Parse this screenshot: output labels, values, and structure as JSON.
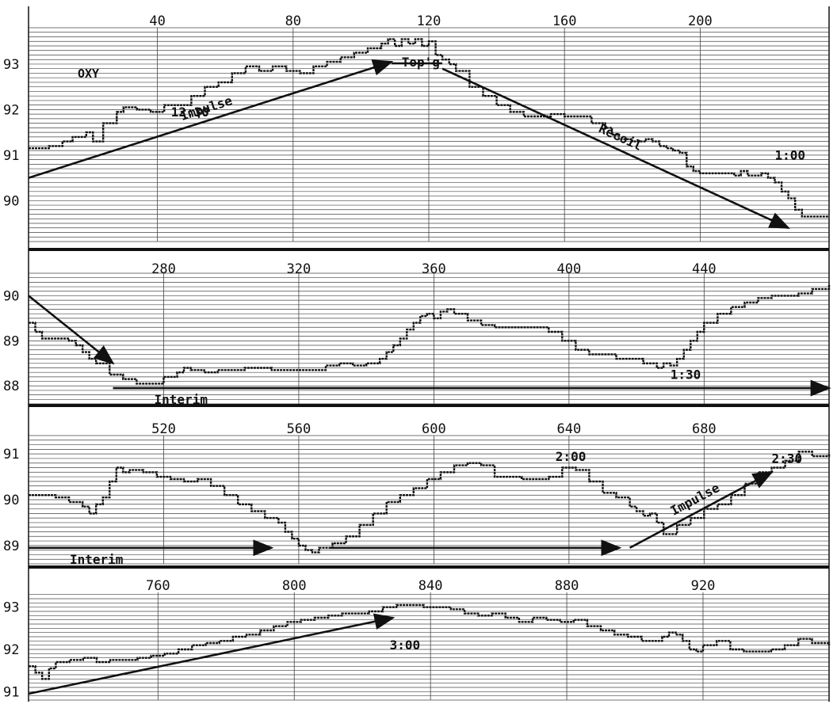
{
  "colors": {
    "ink": "#111111",
    "paper": "#ffffff",
    "grid": "#444444"
  },
  "chart_data": [
    {
      "type": "line",
      "panel": 1,
      "title": "OXY",
      "x_ticks": [
        40,
        80,
        120,
        160,
        200
      ],
      "xlim": [
        2,
        238
      ],
      "y_ticks": [
        90,
        91,
        92,
        93
      ],
      "ylim": [
        89.1,
        93.8
      ],
      "grid": "both",
      "series": [
        {
          "x": [
            2,
            8,
            12,
            15,
            19,
            21,
            24,
            28,
            30,
            34,
            38,
            42,
            46,
            50,
            54,
            58,
            62,
            66,
            70,
            74,
            78,
            82,
            86,
            90,
            94,
            98,
            102,
            106,
            108,
            110,
            112,
            114,
            116,
            118,
            120,
            122,
            124,
            126,
            128,
            132,
            136,
            140,
            144,
            148,
            152,
            156,
            160,
            164,
            168,
            172,
            174,
            176,
            180,
            184,
            186,
            188,
            190,
            192,
            194,
            196,
            198,
            200,
            206,
            210,
            212,
            214,
            216,
            218,
            220,
            222,
            224,
            226,
            228,
            230,
            234,
            238
          ],
          "y": [
            91.15,
            91.2,
            91.3,
            91.4,
            91.5,
            91.3,
            91.7,
            91.95,
            92.05,
            92.0,
            91.95,
            92.1,
            92.1,
            92.3,
            92.5,
            92.6,
            92.8,
            92.95,
            92.85,
            92.95,
            92.85,
            92.8,
            92.95,
            93.05,
            93.15,
            93.25,
            93.35,
            93.45,
            93.55,
            93.4,
            93.55,
            93.45,
            93.55,
            93.4,
            93.5,
            93.2,
            93.1,
            93.0,
            92.85,
            92.5,
            92.3,
            92.1,
            91.95,
            91.85,
            91.85,
            91.9,
            91.85,
            91.85,
            91.7,
            91.6,
            91.45,
            91.35,
            91.3,
            91.35,
            91.3,
            91.2,
            91.15,
            91.1,
            91.05,
            90.75,
            90.65,
            90.6,
            90.6,
            90.55,
            90.65,
            90.55,
            90.55,
            90.6,
            90.5,
            90.4,
            90.2,
            90.05,
            89.8,
            89.65,
            89.65,
            89.65
          ]
        }
      ],
      "annotations": [
        {
          "text": "Impulse",
          "from": [
            2,
            90.5
          ],
          "to": [
            109,
            93.05
          ]
        },
        {
          "text": "Top'g",
          "x": 112,
          "y": 92.95
        },
        {
          "text": "Recoil",
          "from": [
            124,
            92.9
          ],
          "to": [
            226,
            89.4
          ]
        },
        {
          "text": "12:30",
          "x": 44,
          "y": 91.85
        },
        {
          "text": "1:00",
          "x": 222,
          "y": 90.9
        }
      ]
    },
    {
      "type": "line",
      "panel": 2,
      "x_ticks": [
        280,
        320,
        360,
        400,
        440
      ],
      "xlim": [
        240,
        477
      ],
      "y_ticks": [
        88,
        89,
        90
      ],
      "ylim": [
        87.6,
        90.5
      ],
      "grid": "both",
      "series": [
        {
          "x": [
            240,
            242,
            244,
            246,
            248,
            250,
            252,
            254,
            256,
            258,
            260,
            264,
            268,
            272,
            276,
            280,
            284,
            286,
            288,
            292,
            296,
            300,
            304,
            308,
            312,
            316,
            320,
            324,
            328,
            332,
            336,
            340,
            344,
            346,
            348,
            350,
            352,
            354,
            356,
            358,
            360,
            362,
            364,
            366,
            370,
            374,
            378,
            382,
            386,
            390,
            394,
            398,
            402,
            406,
            410,
            414,
            418,
            422,
            426,
            428,
            430,
            432,
            434,
            436,
            438,
            440,
            444,
            448,
            452,
            456,
            460,
            464,
            468,
            472,
            477
          ],
          "y": [
            89.4,
            89.2,
            89.05,
            89.05,
            89.05,
            89.05,
            89.0,
            88.9,
            88.75,
            88.6,
            88.5,
            88.25,
            88.15,
            88.05,
            88.05,
            88.2,
            88.3,
            88.4,
            88.35,
            88.3,
            88.35,
            88.35,
            88.4,
            88.4,
            88.35,
            88.35,
            88.35,
            88.35,
            88.45,
            88.5,
            88.45,
            88.5,
            88.6,
            88.75,
            88.9,
            89.05,
            89.25,
            89.4,
            89.55,
            89.6,
            89.5,
            89.65,
            89.7,
            89.6,
            89.45,
            89.35,
            89.3,
            89.3,
            89.3,
            89.3,
            89.2,
            89.0,
            88.8,
            88.7,
            88.7,
            88.6,
            88.6,
            88.5,
            88.4,
            88.5,
            88.45,
            88.6,
            88.8,
            89.0,
            89.2,
            89.4,
            89.6,
            89.75,
            89.85,
            89.95,
            90.0,
            90.0,
            90.05,
            90.15,
            90.25
          ]
        }
      ],
      "annotations": [
        {
          "text": "",
          "from": [
            240,
            90.0
          ],
          "to": [
            265,
            88.5
          ]
        },
        {
          "text": "Interim",
          "from": [
            265,
            87.95
          ],
          "to": [
            477,
            87.95
          ]
        },
        {
          "text": "1:30",
          "x": 430,
          "y": 88.15
        }
      ]
    },
    {
      "type": "line",
      "panel": 3,
      "x_ticks": [
        520,
        560,
        600,
        640,
        680
      ],
      "xlim": [
        480,
        717
      ],
      "y_ticks": [
        89,
        90,
        91
      ],
      "ylim": [
        88.6,
        91.4
      ],
      "grid": "both",
      "series": [
        {
          "x": [
            480,
            484,
            488,
            492,
            496,
            498,
            500,
            502,
            504,
            506,
            508,
            510,
            514,
            518,
            522,
            526,
            530,
            534,
            538,
            542,
            546,
            550,
            554,
            556,
            558,
            560,
            562,
            564,
            566,
            570,
            574,
            578,
            582,
            586,
            590,
            594,
            598,
            602,
            606,
            610,
            614,
            618,
            622,
            626,
            630,
            634,
            638,
            642,
            646,
            650,
            654,
            658,
            660,
            662,
            664,
            666,
            668,
            672,
            676,
            680,
            684,
            688,
            692,
            696,
            700,
            704,
            708,
            712,
            717
          ],
          "y": [
            90.1,
            90.1,
            90.05,
            89.95,
            89.85,
            89.7,
            89.9,
            90.05,
            90.4,
            90.7,
            90.6,
            90.65,
            90.6,
            90.5,
            90.45,
            90.4,
            90.45,
            90.3,
            90.1,
            89.9,
            89.75,
            89.6,
            89.5,
            89.3,
            89.15,
            89.0,
            88.9,
            88.85,
            88.95,
            89.05,
            89.2,
            89.45,
            89.7,
            89.95,
            90.1,
            90.25,
            90.45,
            90.6,
            90.75,
            90.8,
            90.75,
            90.5,
            90.5,
            90.45,
            90.45,
            90.5,
            90.7,
            90.65,
            90.4,
            90.15,
            90.05,
            89.85,
            89.75,
            89.65,
            89.7,
            89.5,
            89.25,
            89.45,
            89.6,
            89.8,
            89.9,
            90.1,
            90.35,
            90.6,
            90.7,
            90.85,
            91.05,
            90.95,
            91.0
          ]
        }
      ],
      "annotations": [
        {
          "text": "Interim",
          "from": [
            480,
            88.95
          ],
          "to": [
            552,
            88.95
          ]
        },
        {
          "text": "",
          "from": [
            569,
            88.95
          ],
          "to": [
            655,
            88.95
          ]
        },
        {
          "text": "Impulse",
          "from": [
            658,
            88.95
          ],
          "to": [
            700,
            90.6
          ]
        },
        {
          "text": "2:00",
          "x": 636,
          "y": 90.85
        },
        {
          "text": "2:30",
          "x": 700,
          "y": 90.8
        }
      ]
    },
    {
      "type": "line",
      "panel": 4,
      "x_ticks": [
        760,
        800,
        840,
        880,
        920
      ],
      "xlim": [
        722,
        957
      ],
      "y_ticks": [
        91,
        92,
        93
      ],
      "ylim": [
        90.8,
        93.35
      ],
      "grid": "both",
      "series": [
        {
          "x": [
            722,
            724,
            726,
            728,
            730,
            734,
            738,
            742,
            746,
            750,
            754,
            758,
            762,
            766,
            770,
            774,
            778,
            782,
            786,
            790,
            794,
            798,
            802,
            806,
            810,
            814,
            818,
            822,
            826,
            830,
            834,
            838,
            842,
            846,
            850,
            854,
            858,
            862,
            866,
            870,
            874,
            878,
            882,
            886,
            890,
            894,
            898,
            902,
            906,
            908,
            910,
            912,
            914,
            916,
            918,
            920,
            924,
            928,
            932,
            936,
            940,
            944,
            948,
            952,
            957
          ],
          "y": [
            91.6,
            91.45,
            91.3,
            91.55,
            91.7,
            91.75,
            91.8,
            91.7,
            91.75,
            91.75,
            91.8,
            91.85,
            91.9,
            92.0,
            92.1,
            92.15,
            92.2,
            92.3,
            92.35,
            92.45,
            92.55,
            92.65,
            92.7,
            92.75,
            92.8,
            92.85,
            92.85,
            92.9,
            93.0,
            93.05,
            93.05,
            93.0,
            93.0,
            92.95,
            92.85,
            92.8,
            92.85,
            92.75,
            92.65,
            92.75,
            92.7,
            92.65,
            92.7,
            92.55,
            92.45,
            92.35,
            92.3,
            92.2,
            92.2,
            92.3,
            92.4,
            92.35,
            92.2,
            92.0,
            91.95,
            92.1,
            92.2,
            92.0,
            91.95,
            91.95,
            92.0,
            92.1,
            92.25,
            92.15,
            92.1
          ]
        }
      ],
      "annotations": [
        {
          "text": "",
          "from": [
            722,
            90.95
          ],
          "to": [
            829,
            92.75
          ]
        },
        {
          "text": "3:00",
          "x": 828,
          "y": 92.0
        }
      ]
    }
  ]
}
